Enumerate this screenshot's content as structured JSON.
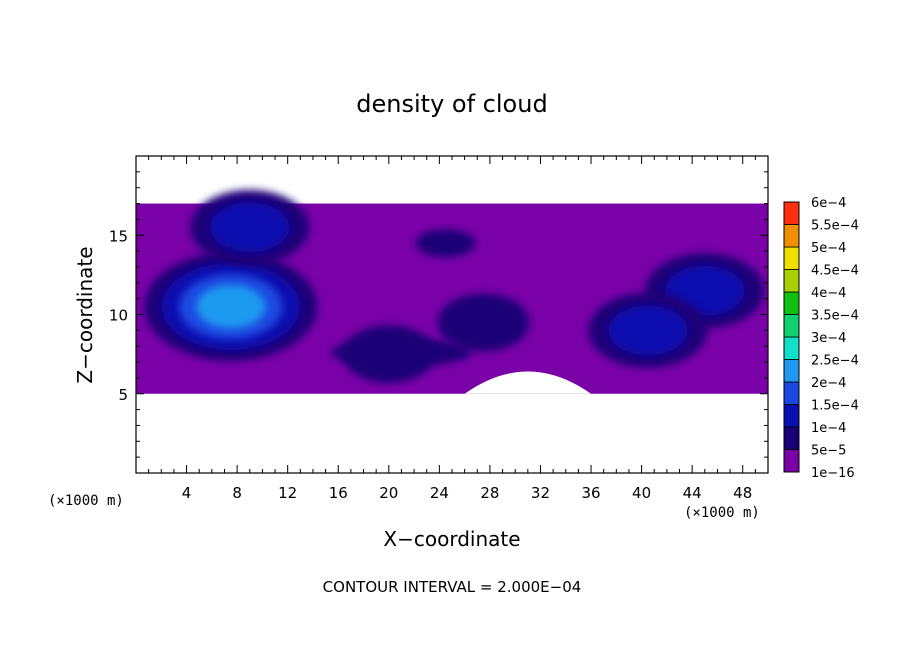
{
  "chart_data": {
    "type": "heatmap",
    "title": "density of cloud",
    "xlabel": "X−coordinate",
    "ylabel": "Z−coordinate",
    "x_unit": "(×1000 m)",
    "xlim": [
      0,
      50
    ],
    "ylim": [
      0,
      20
    ],
    "x_ticks": [
      "4",
      "8",
      "12",
      "16",
      "20",
      "24",
      "28",
      "32",
      "36",
      "40",
      "44",
      "48"
    ],
    "x_tick_values": [
      4,
      8,
      12,
      16,
      20,
      24,
      28,
      32,
      36,
      40,
      44,
      48
    ],
    "y_ticks": [
      "5",
      "10",
      "15"
    ],
    "y_tick_values": [
      5,
      10,
      15
    ],
    "footer": "CONTOUR INTERVAL = 2.000E−04",
    "colorbar": {
      "levels": [
        "1e−16",
        "5e−5",
        "1e−4",
        "1.5e−4",
        "2e−4",
        "2.5e−4",
        "3e−4",
        "3.5e−4",
        "4e−4",
        "4.5e−4",
        "5e−4",
        "5.5e−4",
        "6e−4"
      ],
      "colors": [
        "#7a00a8",
        "#1a0078",
        "#0a10b0",
        "#1c48e0",
        "#1f9af0",
        "#12e0c8",
        "#10d070",
        "#10c010",
        "#a8d000",
        "#f0e000",
        "#f09000",
        "#ff3010",
        "#ff9090"
      ]
    },
    "cloud_layer": {
      "bottom_km": 5,
      "top_km": 17
    },
    "cloud_cores": [
      {
        "x": 7.5,
        "z": 10.5,
        "density": 0.00022
      },
      {
        "x": 9.0,
        "z": 15.5,
        "density": 0.00012
      },
      {
        "x": 45.0,
        "z": 11.5,
        "density": 0.00015
      },
      {
        "x": 20.0,
        "z": 7.5,
        "density": 7e-05
      },
      {
        "x": 27.5,
        "z": 9.5,
        "density": 8e-05
      },
      {
        "x": 40.5,
        "z": 9.0,
        "density": 0.00012
      }
    ]
  }
}
